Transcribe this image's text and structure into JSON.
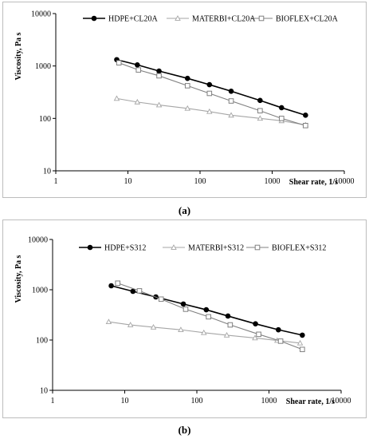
{
  "chart_data": [
    {
      "type": "line",
      "caption": "(a)",
      "xlabel": "Shear rate, 1/s",
      "ylabel": "Viscosity, Pa s",
      "xscale": "log",
      "yscale": "log",
      "xlim": [
        1,
        10000
      ],
      "ylim": [
        10,
        10000
      ],
      "xticks": [
        "1",
        "10",
        "100",
        "1000",
        "10000"
      ],
      "yticks": [
        "10",
        "100",
        "1000",
        "10000"
      ],
      "legend": "top",
      "series": [
        {
          "name": "HDPE+CL20A",
          "color": "#000000",
          "marker": "filled-circle",
          "x": [
            7,
            13.5,
            27,
            67,
            135,
            270,
            680,
            1350,
            2900
          ],
          "y": [
            1320,
            1050,
            800,
            580,
            440,
            330,
            220,
            160,
            115
          ]
        },
        {
          "name": "MATERBI+CL20A",
          "color": "#a6a6a6",
          "marker": "triangle",
          "x": [
            7,
            13.5,
            27,
            67,
            135,
            270,
            680,
            1350,
            2900
          ],
          "y": [
            240,
            205,
            180,
            155,
            135,
            115,
            100,
            90,
            75
          ]
        },
        {
          "name": "BIOFLEX+CL20A",
          "color": "#808080",
          "marker": "open-square",
          "x": [
            7.5,
            14,
            27,
            67,
            135,
            270,
            680,
            1350,
            2900
          ],
          "y": [
            1150,
            840,
            650,
            420,
            300,
            215,
            140,
            100,
            73
          ]
        }
      ]
    },
    {
      "type": "line",
      "caption": "(b)",
      "xlabel": "Shear rate, 1/s",
      "ylabel": "Viscosity, Pa s",
      "xscale": "log",
      "yscale": "log",
      "xlim": [
        1,
        10000
      ],
      "ylim": [
        10,
        10000
      ],
      "xticks": [
        "1",
        "10",
        "100",
        "1000",
        "10000"
      ],
      "yticks": [
        "10",
        "100",
        "1000",
        "10000"
      ],
      "legend": "top",
      "series": [
        {
          "name": "HDPE+S312",
          "color": "#000000",
          "marker": "filled-circle",
          "x": [
            6.5,
            13,
            27,
            65,
            135,
            270,
            650,
            1350,
            2900
          ],
          "y": [
            1200,
            930,
            720,
            520,
            400,
            300,
            210,
            160,
            125
          ]
        },
        {
          "name": "MATERBI+S312",
          "color": "#a6a6a6",
          "marker": "triangle",
          "x": [
            6,
            12,
            25,
            60,
            125,
            260,
            640,
            1300,
            2700
          ],
          "y": [
            230,
            200,
            180,
            160,
            140,
            125,
            110,
            98,
            87
          ]
        },
        {
          "name": "BIOFLEX+S312",
          "color": "#808080",
          "marker": "open-square",
          "x": [
            8,
            16,
            32,
            70,
            145,
            290,
            720,
            1450,
            2900
          ],
          "y": [
            1350,
            950,
            650,
            410,
            290,
            200,
            130,
            95,
            65
          ]
        }
      ]
    }
  ]
}
